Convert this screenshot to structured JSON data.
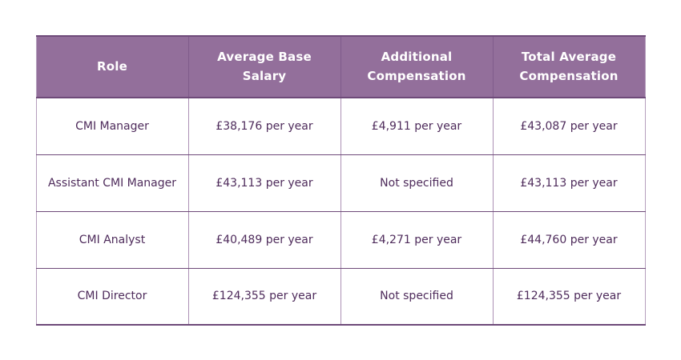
{
  "chart_data": {
    "type": "table",
    "columns": [
      "Role",
      "Average Base Salary",
      "Additional Compensation",
      "Total Average Compensation"
    ],
    "rows": [
      [
        "CMI Manager",
        "£38,176 per year",
        "£4,911 per year",
        "£43,087 per year"
      ],
      [
        "Assistant CMI Manager",
        "£43,113 per year",
        "Not specified",
        "£43,113 per year"
      ],
      [
        "CMI Analyst",
        "£40,489 per year",
        "£4,271 per year",
        "£44,760 per year"
      ],
      [
        "CMI Director",
        "£124,355 per year",
        "Not specified",
        "£124,355 per year"
      ]
    ]
  },
  "colors": {
    "header_background": "#936F9B",
    "header_text": "#FFFFFF",
    "cell_text": "#4E2B5B",
    "horizontal_border": "#6E4A79",
    "vertical_border": "#AC90B5",
    "outer_side_border": "#B59FBD",
    "page_background": "#FFFFFF"
  }
}
